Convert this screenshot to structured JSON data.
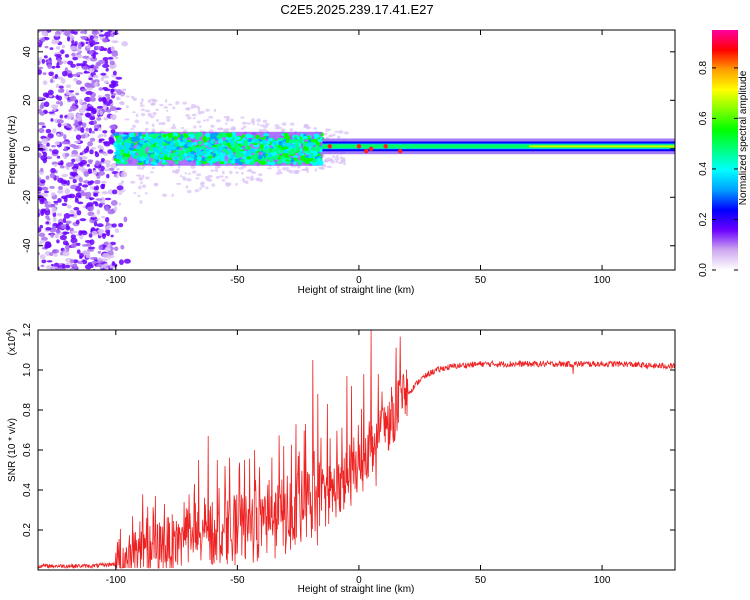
{
  "title": "C2E5.2025.239.17.41.E27",
  "chart_data": [
    {
      "id": "spectrogram",
      "type": "heatmap",
      "xlabel": "Height of straight line (km)",
      "ylabel": "Frequency (Hz)",
      "xlim": [
        -132,
        130
      ],
      "ylim": [
        -50,
        49
      ],
      "xticks": [
        -100,
        -50,
        0,
        50,
        100
      ],
      "yticks": [
        -40,
        -20,
        0,
        20,
        40
      ],
      "xtick_labels": [
        "-100",
        "-50",
        "0",
        "50",
        "100"
      ],
      "ytick_labels": [
        "-40",
        "-20",
        "0",
        "20",
        "40"
      ],
      "colorbar": {
        "label": "Normalized spectral amplitude",
        "range": [
          0,
          0.95
        ],
        "ticks": [
          0,
          0.2,
          0.4,
          0.6,
          0.8
        ],
        "tick_labels": [
          "0.0",
          "0.2",
          "0.4",
          "0.6",
          "0.8"
        ],
        "colors": [
          "#ffffff",
          "#cfa8f0",
          "#6a00ff",
          "#0000ff",
          "#00a0ff",
          "#00ffff",
          "#00ff80",
          "#00ff00",
          "#80ff00",
          "#ffff00",
          "#ffa000",
          "#ff0000",
          "#ff00a0"
        ]
      },
      "regions": [
        {
          "name": "noise-scatter",
          "x_range": [
            -132,
            -100
          ],
          "freq_spread": 48
        },
        {
          "name": "broadband-band",
          "x_range": [
            -100,
            -15
          ],
          "freq_center": 0,
          "half_width_hz": 5
        },
        {
          "name": "narrow-band",
          "x_range": [
            -15,
            130
          ],
          "freq_center": 1,
          "half_width_hz": 2
        }
      ]
    },
    {
      "id": "snr",
      "type": "line",
      "xlabel": "Height of straight line (km)",
      "ylabel": "SNR (10 * v/v)",
      "y_multiplier": "(x10",
      "y_multiplier_exp": "4",
      "y_multiplier_close": ")",
      "xlim": [
        -132,
        130
      ],
      "ylim": [
        0,
        1.2
      ],
      "xticks": [
        -100,
        -50,
        0,
        50,
        100
      ],
      "yticks": [
        0.2,
        0.4,
        0.6,
        0.8,
        1.0,
        1.2
      ],
      "xtick_labels": [
        "-100",
        "-50",
        "0",
        "50",
        "100"
      ],
      "ytick_labels": [
        "0.2",
        "0.4",
        "0.6",
        "0.8",
        "1.0",
        "1.2"
      ],
      "color": "#ee2222",
      "series": [
        {
          "name": "SNR",
          "envelope": {
            "x": [
              -132,
              -110,
              -100,
              -95,
              -90,
              -85,
              -80,
              -75,
              -70,
              -65,
              -60,
              -55,
              -50,
              -45,
              -40,
              -35,
              -30,
              -25,
              -20,
              -15,
              -10,
              -5,
              0,
              5,
              10,
              15,
              20,
              25,
              30,
              35,
              40,
              50,
              60,
              70,
              80,
              90,
              100,
              110,
              120,
              130
            ],
            "y": [
              0.02,
              0.02,
              0.03,
              0.06,
              0.08,
              0.1,
              0.12,
              0.14,
              0.16,
              0.16,
              0.18,
              0.2,
              0.2,
              0.22,
              0.23,
              0.25,
              0.27,
              0.29,
              0.3,
              0.35,
              0.4,
              0.45,
              0.5,
              0.6,
              0.7,
              0.8,
              0.88,
              0.95,
              0.99,
              1.01,
              1.02,
              1.03,
              1.03,
              1.03,
              1.03,
              1.03,
              1.03,
              1.03,
              1.02,
              1.02
            ]
          },
          "spikes": [
            {
              "x": -92,
              "y": 0.19
            },
            {
              "x": -88,
              "y": 0.16
            },
            {
              "x": -80,
              "y": 0.33
            },
            {
              "x": -72,
              "y": 0.34
            },
            {
              "x": -66,
              "y": 0.55
            },
            {
              "x": -62,
              "y": 0.67
            },
            {
              "x": -55,
              "y": 0.52
            },
            {
              "x": -47,
              "y": 0.55
            },
            {
              "x": -43,
              "y": 0.6
            },
            {
              "x": -37,
              "y": 0.45
            },
            {
              "x": -31,
              "y": 0.62
            },
            {
              "x": -25,
              "y": 0.57
            },
            {
              "x": -22,
              "y": 0.73
            },
            {
              "x": -19,
              "y": 1.05
            },
            {
              "x": -17,
              "y": 0.88
            },
            {
              "x": -13,
              "y": 0.83
            },
            {
              "x": -5,
              "y": 0.97
            },
            {
              "x": -3,
              "y": 0.92
            },
            {
              "x": 2,
              "y": 0.98
            },
            {
              "x": 5,
              "y": 1.2
            },
            {
              "x": 8,
              "y": 0.98
            },
            {
              "x": 12,
              "y": 0.82
            },
            {
              "x": 88,
              "y": 1.09
            }
          ],
          "dips": [
            {
              "x": 6,
              "y": 0.52
            },
            {
              "x": 7,
              "y": 0.42
            },
            {
              "x": 88,
              "y": 0.98
            }
          ]
        }
      ]
    }
  ]
}
